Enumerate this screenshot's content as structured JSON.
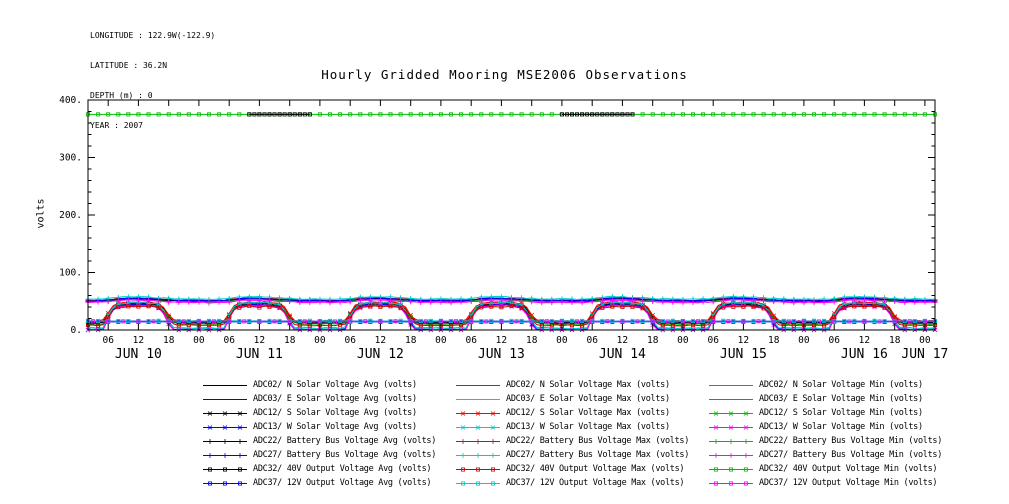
{
  "meta": {
    "lines": [
      "LONGITUDE : 122.9W(-122.9)",
      "LATITUDE : 36.2N",
      "DEPTH (m) : 0",
      "YEAR : 2007"
    ]
  },
  "title": "Hourly Gridded Mooring MSE2006 Observations",
  "chart_data": {
    "type": "line",
    "title": "Hourly Gridded Mooring MSE2006 Observations",
    "xlabel": "",
    "ylabel": "volts",
    "x_domain": [
      2,
      170
    ],
    "y_domain": [
      0,
      400
    ],
    "y_ticks": [
      {
        "v": 0,
        "label": "0."
      },
      {
        "v": 100,
        "label": "100."
      },
      {
        "v": 200,
        "label": "200."
      },
      {
        "v": 300,
        "label": "300."
      },
      {
        "v": 400,
        "label": "400."
      }
    ],
    "y_minor_step": 20,
    "x_ticks": {
      "start": 6,
      "end": 168,
      "step": 6,
      "labels_cycle": [
        "06",
        "12",
        "18",
        "00"
      ]
    },
    "day_labels": [
      {
        "h": 12,
        "t": "JUN 10"
      },
      {
        "h": 36,
        "t": "JUN 11"
      },
      {
        "h": 60,
        "t": "JUN 12"
      },
      {
        "h": 84,
        "t": "JUN 13"
      },
      {
        "h": 108,
        "t": "JUN 14"
      },
      {
        "h": 132,
        "t": "JUN 15"
      },
      {
        "h": 156,
        "t": "JUN 16"
      },
      {
        "h": 168,
        "t": "JUN 17"
      }
    ],
    "grid": false,
    "legend_position": "below",
    "patterns": {
      "dome": [
        14,
        14,
        14,
        14,
        14,
        16,
        28,
        41,
        45,
        46,
        47,
        47,
        46,
        47,
        47,
        46,
        44,
        38,
        24,
        16,
        14,
        14,
        14,
        14
      ],
      "dome0": [
        0,
        0,
        0,
        0,
        0,
        1,
        22,
        36,
        41,
        43,
        44,
        44,
        44,
        44,
        43,
        42,
        40,
        30,
        12,
        1,
        0,
        0,
        0,
        0
      ],
      "bus": [
        54,
        54,
        53.5,
        53.5,
        54,
        54,
        55,
        56,
        57,
        57.5,
        58,
        58,
        58,
        57.5,
        57,
        56.5,
        56,
        55.5,
        55,
        54.5,
        54,
        54,
        54,
        54
      ]
    },
    "series": [
      {
        "label": "ADC02/ N Solar Voltage Avg (volts)",
        "color": "#000000",
        "marker": "none",
        "pattern": "dome",
        "offset": -1,
        "noise": 1.2
      },
      {
        "label": "ADC02/ N Solar Voltage Max (volts)",
        "color": "#ff0000",
        "marker": "none",
        "pattern": "dome",
        "offset": 1.5,
        "noise": 1.2
      },
      {
        "label": "ADC02/ N Solar Voltage Min (volts)",
        "color": "#00bb00",
        "marker": "none",
        "pattern": "dome",
        "offset": -3,
        "noise": 1.2
      },
      {
        "label": "ADC03/ E Solar Voltage Avg (volts)",
        "color": "#0000ff",
        "marker": "none",
        "pattern": "dome0",
        "offset": 0.5,
        "noise": 1.2
      },
      {
        "label": "ADC03/ E Solar Voltage Max (volts)",
        "color": "#00cccc",
        "marker": "none",
        "pattern": "dome0",
        "offset": 2.5,
        "noise": 1.2
      },
      {
        "label": "ADC03/ E Solar Voltage Min (volts)",
        "color": "#ff00ff",
        "marker": "none",
        "pattern": "dome0",
        "offset": -1,
        "noise": 1.2
      },
      {
        "label": "ADC12/ S Solar Voltage Avg (volts)",
        "color": "#000000",
        "marker": "x",
        "mstep": 2,
        "pattern": "dome",
        "offset": -2,
        "noise": 1.4
      },
      {
        "label": "ADC12/ S Solar Voltage Max (volts)",
        "color": "#ff0000",
        "marker": "x",
        "mstep": 2,
        "pattern": "dome",
        "offset": 0.5,
        "noise": 1.4
      },
      {
        "label": "ADC12/ S Solar Voltage Min (volts)",
        "color": "#00bb00",
        "marker": "x",
        "mstep": 2,
        "pattern": "dome",
        "offset": -4,
        "noise": 1.4
      },
      {
        "label": "ADC13/ W Solar Voltage Avg (volts)",
        "color": "#0000ff",
        "marker": "x",
        "mstep": 2,
        "pattern": "dome0",
        "offset": -0.5,
        "noise": 1.4
      },
      {
        "label": "ADC13/ W Solar Voltage Max (volts)",
        "color": "#00cccc",
        "marker": "x",
        "mstep": 2,
        "pattern": "dome0",
        "offset": 3.5,
        "noise": 1.4
      },
      {
        "label": "ADC13/ W Solar Voltage Min (volts)",
        "color": "#ff00ff",
        "marker": "x",
        "mstep": 2,
        "pattern": "dome0",
        "offset": -2,
        "noise": 1.4
      },
      {
        "label": "ADC22/ Battery Bus Voltage Avg (volts)",
        "color": "#000000",
        "marker": "plus",
        "mstep": 2,
        "pattern": "bus",
        "offset": -3.5,
        "noise": 0.7
      },
      {
        "label": "ADC22/ Battery Bus Voltage Max (volts)",
        "color": "#a02020",
        "marker": "plus",
        "mstep": 2,
        "pattern": "bus",
        "offset": -2,
        "noise": 0.7
      },
      {
        "label": "ADC22/ Battery Bus Voltage Min (volts)",
        "color": "#00bb00",
        "marker": "plus",
        "mstep": 2,
        "pattern": "bus",
        "offset": -5,
        "noise": 0.7
      },
      {
        "label": "ADC27/ Battery Bus Voltage Avg (volts)",
        "color": "#0000ff",
        "marker": "plus",
        "mstep": 2,
        "pattern": "bus",
        "offset": -2.8,
        "noise": 0.7
      },
      {
        "label": "ADC27/ Battery Bus Voltage Max (volts)",
        "color": "#00cccc",
        "marker": "plus",
        "mstep": 2,
        "pattern": "bus",
        "offset": 0,
        "noise": 0.7
      },
      {
        "label": "ADC27/ Battery Bus Voltage Min (volts)",
        "color": "#ff00ff",
        "marker": "plus",
        "mstep": 2,
        "pattern": "bus",
        "offset": -6,
        "noise": 0.7
      },
      {
        "label": "ADC32/ 40V Output Voltage Avg (volts)",
        "color": "#000000",
        "marker": "square",
        "mstep": 1,
        "noise": 0,
        "top": true,
        "segments": [
          {
            "h0": 34,
            "h1": 46,
            "v": 375
          },
          {
            "h0": 96,
            "h1": 110,
            "v": 375
          }
        ]
      },
      {
        "label": "ADC32/ 40V Output Voltage Max (volts)",
        "color": "#d00000",
        "marker": "square",
        "mstep": 2,
        "pattern": "dome",
        "offset": -6,
        "noise": 1.0
      },
      {
        "label": "ADC32/ 40V Output Voltage Min (volts)",
        "color": "#00bb00",
        "marker": "square",
        "mstep": 2,
        "const": 375,
        "noise": 0
      },
      {
        "label": "ADC37/ 12V Output Voltage Avg (volts)",
        "color": "#0000ff",
        "marker": "square",
        "mstep": 2,
        "const": 14.2,
        "noise": 0.2
      },
      {
        "label": "ADC37/ 12V Output Voltage Max (volts)",
        "color": "#00cccc",
        "marker": "square",
        "mstep": 2,
        "const": 15.8,
        "noise": 0.2
      },
      {
        "label": "ADC37/ 12V Output Voltage Min (volts)",
        "color": "#ff00ff",
        "marker": "square",
        "mstep": 3,
        "const": 15.0,
        "noise": 0.2
      }
    ]
  }
}
